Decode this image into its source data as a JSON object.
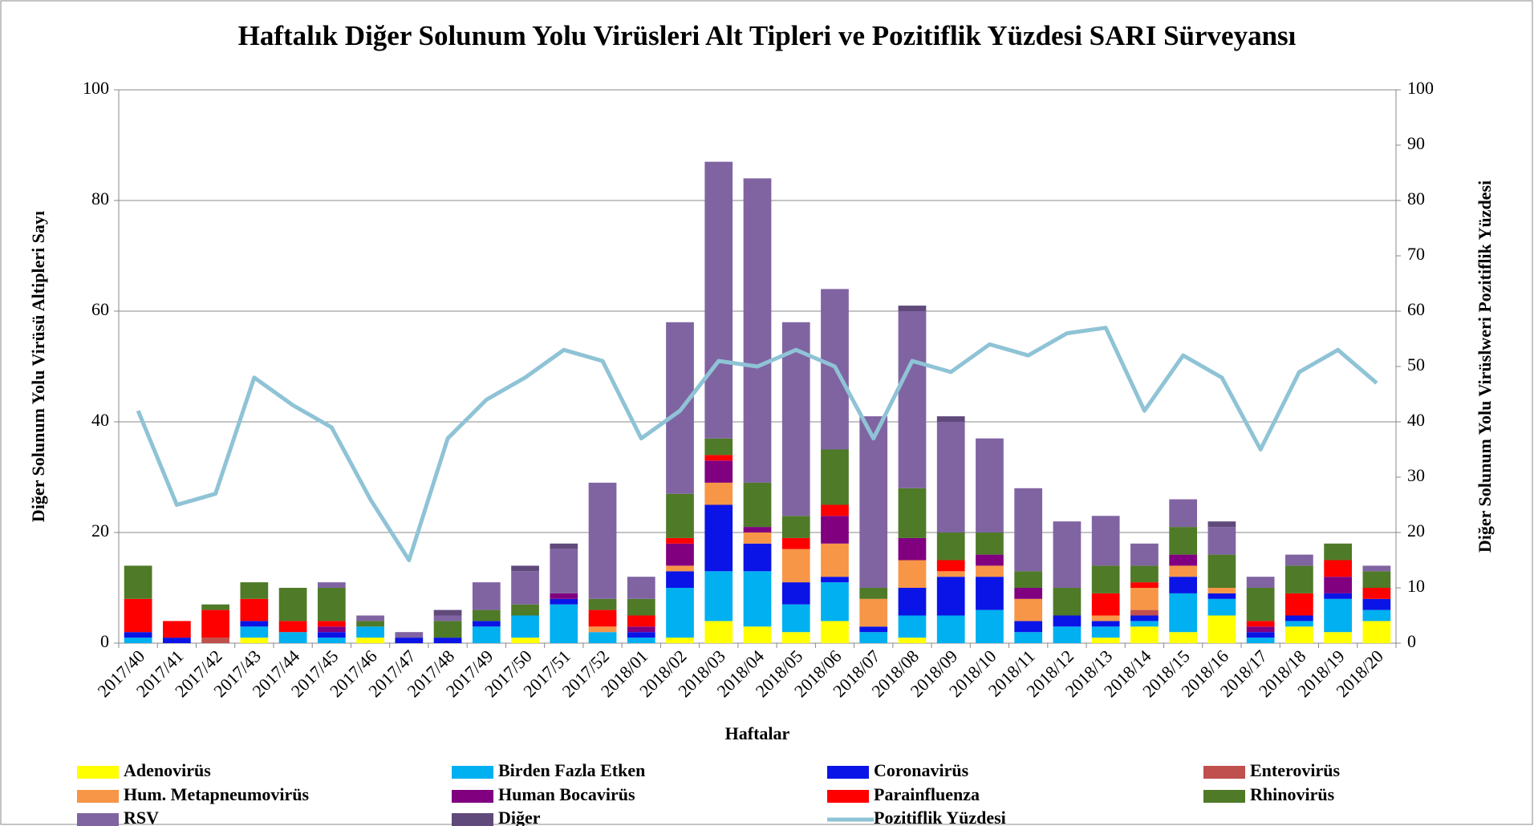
{
  "chart_data": {
    "type": "bar",
    "title": "Haftalık Diğer Solunum Yolu Virüsleri Alt Tipleri ve Pozitiflik Yüzdesi SARI Sürveyansı",
    "xlabel": "Haftalar",
    "ylabel": "Diğer Solunum Yolu Virüsü Altipleri Sayı",
    "y2label": "Diğer Solunum Yolu Virüslweri Pozitiflik Yüzdesi",
    "stacked": true,
    "grid": true,
    "categories": [
      "2017/40",
      "2017/41",
      "2017/42",
      "2017/43",
      "2017/44",
      "2017/45",
      "2017/46",
      "2017/47",
      "2017/48",
      "2017/49",
      "2017/50",
      "2017/51",
      "2017/52",
      "2018/01",
      "2018/02",
      "2018/03",
      "2018/04",
      "2018/05",
      "2018/06",
      "2018/07",
      "2018/08",
      "2018/09",
      "2018/10",
      "2018/11",
      "2018/12",
      "2018/13",
      "2018/14",
      "2018/15",
      "2018/16",
      "2018/17",
      "2018/18",
      "2018/19",
      "2018/20"
    ],
    "ylim": [
      0,
      100
    ],
    "yticks": [
      0,
      20,
      40,
      60,
      80,
      100
    ],
    "y2lim": [
      0,
      100
    ],
    "y2ticks": [
      0,
      10,
      20,
      30,
      40,
      50,
      60,
      70,
      80,
      90,
      100
    ],
    "series": [
      {
        "name": "Adenovirüs",
        "color": "#ffff00",
        "values": [
          0,
          0,
          0,
          1,
          0,
          0,
          1,
          0,
          0,
          0,
          1,
          0,
          0,
          0,
          1,
          4,
          3,
          2,
          4,
          0,
          1,
          0,
          0,
          0,
          0,
          1,
          3,
          2,
          5,
          0,
          3,
          2,
          4
        ]
      },
      {
        "name": "Birden Fazla Etken",
        "color": "#00b0f0",
        "values": [
          1,
          0,
          0,
          2,
          2,
          1,
          2,
          0,
          0,
          3,
          4,
          7,
          2,
          1,
          9,
          9,
          10,
          5,
          7,
          2,
          4,
          5,
          6,
          2,
          3,
          2,
          1,
          7,
          3,
          1,
          1,
          6,
          2
        ]
      },
      {
        "name": "Coronavirüs",
        "color": "#0a14e6",
        "values": [
          1,
          1,
          0,
          1,
          0,
          1,
          0,
          1,
          1,
          1,
          0,
          1,
          0,
          1,
          3,
          12,
          5,
          4,
          1,
          1,
          5,
          7,
          6,
          2,
          2,
          1,
          1,
          3,
          1,
          1,
          1,
          1,
          2
        ]
      },
      {
        "name": "Enterovirüs",
        "color": "#c0504d",
        "values": [
          0,
          0,
          1,
          0,
          0,
          0,
          0,
          0,
          0,
          0,
          0,
          0,
          0,
          0,
          0,
          0,
          0,
          0,
          0,
          0,
          0,
          0,
          0,
          0,
          0,
          0,
          1,
          0,
          0,
          0,
          0,
          0,
          0
        ]
      },
      {
        "name": "Hum. Metapneumovirüs",
        "color": "#f79646",
        "values": [
          0,
          0,
          0,
          0,
          0,
          0,
          0,
          0,
          0,
          0,
          0,
          0,
          1,
          0,
          1,
          4,
          2,
          6,
          6,
          5,
          5,
          1,
          2,
          4,
          0,
          1,
          4,
          2,
          1,
          0,
          0,
          0,
          0
        ]
      },
      {
        "name": "Human Bocavirüs",
        "color": "#800080",
        "values": [
          0,
          0,
          0,
          0,
          0,
          1,
          0,
          0,
          0,
          0,
          0,
          1,
          0,
          1,
          4,
          4,
          1,
          0,
          5,
          0,
          4,
          0,
          2,
          2,
          0,
          0,
          0,
          2,
          0,
          1,
          0,
          3,
          0
        ]
      },
      {
        "name": "Parainfluenza",
        "color": "#ff0000",
        "values": [
          6,
          3,
          5,
          4,
          2,
          1,
          0,
          0,
          0,
          0,
          0,
          0,
          3,
          2,
          1,
          1,
          0,
          2,
          2,
          0,
          0,
          2,
          0,
          0,
          0,
          4,
          1,
          0,
          0,
          1,
          4,
          3,
          2
        ]
      },
      {
        "name": "Rhinovirüs",
        "color": "#4f7a28",
        "values": [
          6,
          0,
          1,
          3,
          6,
          6,
          1,
          0,
          3,
          2,
          2,
          0,
          2,
          3,
          8,
          3,
          8,
          4,
          10,
          2,
          9,
          5,
          4,
          3,
          5,
          5,
          3,
          5,
          6,
          6,
          5,
          3,
          3
        ]
      },
      {
        "name": "RSV",
        "color": "#8064a2",
        "values": [
          0,
          0,
          0,
          0,
          0,
          1,
          1,
          1,
          1,
          5,
          6,
          8,
          21,
          4,
          31,
          50,
          55,
          35,
          29,
          31,
          32,
          20,
          17,
          15,
          12,
          9,
          4,
          5,
          5,
          2,
          2,
          0,
          1
        ]
      },
      {
        "name": "Diğer",
        "color": "#604a7b",
        "values": [
          0,
          0,
          0,
          0,
          0,
          0,
          0,
          0,
          1,
          0,
          1,
          1,
          0,
          0,
          0,
          0,
          0,
          0,
          0,
          0,
          1,
          1,
          0,
          0,
          0,
          0,
          0,
          0,
          1,
          0,
          0,
          0,
          0
        ]
      },
      {
        "name": "Pozitiflik Yüzdesi",
        "type": "line",
        "axis": "y2",
        "color": "#8fc3d6",
        "values": [
          42,
          25,
          27,
          48,
          43,
          39,
          26,
          15,
          37,
          44,
          48,
          53,
          51,
          37,
          42,
          51,
          50,
          53,
          50,
          37,
          51,
          49,
          54,
          52,
          56,
          57,
          42,
          52,
          48,
          35,
          49,
          53,
          47
        ]
      }
    ]
  }
}
